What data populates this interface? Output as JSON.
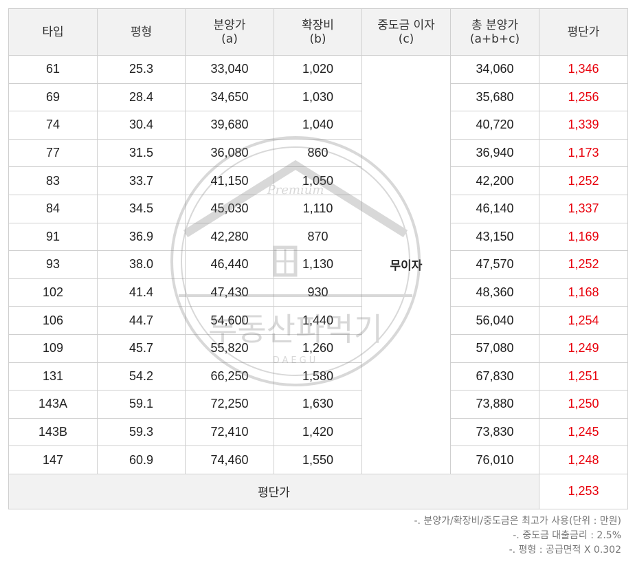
{
  "headers": {
    "type": "타입",
    "pyeong": "평형",
    "price": "분양가",
    "price_sub": "(a)",
    "expansion": "확장비",
    "expansion_sub": "(b)",
    "interest": "중도금 이자",
    "interest_sub": "(c)",
    "total": "총 분양가",
    "total_sub": "(a+b+c)",
    "per_pyeong": "평단가"
  },
  "interest_value": "무이자",
  "rows": [
    {
      "type": "61",
      "pyeong": "25.3",
      "price": "33,040",
      "expansion": "1,020",
      "total": "34,060",
      "per_pyeong": "1,346"
    },
    {
      "type": "69",
      "pyeong": "28.4",
      "price": "34,650",
      "expansion": "1,030",
      "total": "35,680",
      "per_pyeong": "1,256"
    },
    {
      "type": "74",
      "pyeong": "30.4",
      "price": "39,680",
      "expansion": "1,040",
      "total": "40,720",
      "per_pyeong": "1,339"
    },
    {
      "type": "77",
      "pyeong": "31.5",
      "price": "36,080",
      "expansion": "860",
      "total": "36,940",
      "per_pyeong": "1,173"
    },
    {
      "type": "83",
      "pyeong": "33.7",
      "price": "41,150",
      "expansion": "1,050",
      "total": "42,200",
      "per_pyeong": "1,252"
    },
    {
      "type": "84",
      "pyeong": "34.5",
      "price": "45,030",
      "expansion": "1,110",
      "total": "46,140",
      "per_pyeong": "1,337"
    },
    {
      "type": "91",
      "pyeong": "36.9",
      "price": "42,280",
      "expansion": "870",
      "total": "43,150",
      "per_pyeong": "1,169"
    },
    {
      "type": "93",
      "pyeong": "38.0",
      "price": "46,440",
      "expansion": "1,130",
      "total": "47,570",
      "per_pyeong": "1,252"
    },
    {
      "type": "102",
      "pyeong": "41.4",
      "price": "47,430",
      "expansion": "930",
      "total": "48,360",
      "per_pyeong": "1,168"
    },
    {
      "type": "106",
      "pyeong": "44.7",
      "price": "54,600",
      "expansion": "1,440",
      "total": "56,040",
      "per_pyeong": "1,254"
    },
    {
      "type": "109",
      "pyeong": "45.7",
      "price": "55,820",
      "expansion": "1,260",
      "total": "57,080",
      "per_pyeong": "1,249"
    },
    {
      "type": "131",
      "pyeong": "54.2",
      "price": "66,250",
      "expansion": "1,580",
      "total": "67,830",
      "per_pyeong": "1,251"
    },
    {
      "type": "143A",
      "pyeong": "59.1",
      "price": "72,250",
      "expansion": "1,630",
      "total": "73,880",
      "per_pyeong": "1,250"
    },
    {
      "type": "143B",
      "pyeong": "59.3",
      "price": "72,410",
      "expansion": "1,420",
      "total": "73,830",
      "per_pyeong": "1,245"
    },
    {
      "type": "147",
      "pyeong": "60.9",
      "price": "74,460",
      "expansion": "1,550",
      "total": "76,010",
      "per_pyeong": "1,248"
    }
  ],
  "average": {
    "label": "평단가",
    "value": "1,253"
  },
  "notes": [
    "-. 분양가/확장비/중도금은  최고가 사용(단위 : 만원)",
    "-. 중도금 대출금리 : 2.5%",
    "-. 평형 : 공급면적 X 0.302"
  ],
  "watermark": {
    "text": "부동산파먹기",
    "script": "Premium",
    "city": "DAEGU"
  },
  "colors": {
    "accent_red": "#e8000b",
    "header_bg": "#f2f2f2",
    "border": "#cfcfcf"
  }
}
